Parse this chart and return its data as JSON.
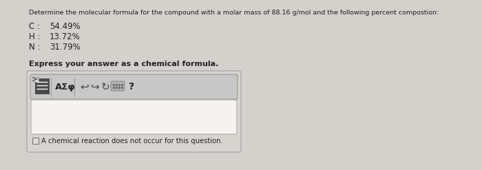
{
  "bg_color": "#d4d0cb",
  "title_text": "Determine the molecular formula for the compound with a molar mass of 88.16 g/mol and the following percent compostion:",
  "elements": [
    {
      "label": "C :",
      "value": "54.49%"
    },
    {
      "label": "H :",
      "value": "13.72%"
    },
    {
      "label": "N :",
      "value": "31.79%"
    }
  ],
  "express_label": "Express your answer as a chemical formula.",
  "toolbar_text": "AΣφ",
  "checkbox_label": "A chemical reaction does not occur for this question.",
  "text_color": "#222222",
  "toolbar_bg": "#c8c8c8",
  "outer_box_bg": "#d8d5d0",
  "outer_box_edge": "#aaaaaa",
  "toolbar_edge": "#999999",
  "answer_bg": "#f0eeea",
  "answer_edge": "#aaaaaa",
  "icon_dark": "#4a4a4a",
  "icon_light": "#c0c0c0",
  "kbd_bg": "#b0b0b0"
}
